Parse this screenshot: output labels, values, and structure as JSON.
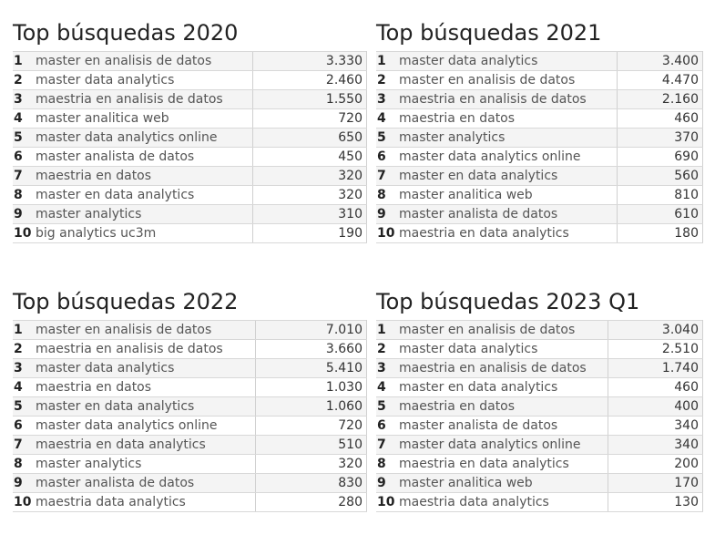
{
  "chart_data": [
    {
      "type": "table",
      "title": "Top búsquedas 2020",
      "rows": [
        {
          "rank": "1",
          "term": "master en analisis de datos",
          "value": "3.330"
        },
        {
          "rank": "2",
          "term": "master data analytics",
          "value": "2.460"
        },
        {
          "rank": "3",
          "term": "maestria en analisis de datos",
          "value": "1.550"
        },
        {
          "rank": "4",
          "term": "master analitica web",
          "value": "720"
        },
        {
          "rank": "5",
          "term": "master data analytics online",
          "value": "650"
        },
        {
          "rank": "6",
          "term": "master analista de datos",
          "value": "450"
        },
        {
          "rank": "7",
          "term": "maestria en datos",
          "value": "320"
        },
        {
          "rank": "8",
          "term": "master en data analytics",
          "value": "320"
        },
        {
          "rank": "9",
          "term": "master analytics",
          "value": "310"
        },
        {
          "rank": "10",
          "term": "big analytics uc3m",
          "value": "190"
        }
      ]
    },
    {
      "type": "table",
      "title": "Top búsquedas 2021",
      "rows": [
        {
          "rank": "1",
          "term": "master data analytics",
          "value": "3.400"
        },
        {
          "rank": "2",
          "term": "master en analisis de datos",
          "value": "4.470"
        },
        {
          "rank": "3",
          "term": "maestria en analisis de datos",
          "value": "2.160"
        },
        {
          "rank": "4",
          "term": "maestria en datos",
          "value": "460"
        },
        {
          "rank": "5",
          "term": "master analytics",
          "value": "370"
        },
        {
          "rank": "6",
          "term": "master data analytics online",
          "value": "690"
        },
        {
          "rank": "7",
          "term": "master en data analytics",
          "value": "560"
        },
        {
          "rank": "8",
          "term": "master analitica web",
          "value": "810"
        },
        {
          "rank": "9",
          "term": "master analista de datos",
          "value": "610"
        },
        {
          "rank": "10",
          "term": "maestria en data analytics",
          "value": "180"
        }
      ]
    },
    {
      "type": "table",
      "title": "Top búsquedas 2022",
      "rows": [
        {
          "rank": "1",
          "term": "master en analisis de datos",
          "value": "7.010"
        },
        {
          "rank": "2",
          "term": "maestria en analisis de datos",
          "value": "3.660"
        },
        {
          "rank": "3",
          "term": "master data analytics",
          "value": "5.410"
        },
        {
          "rank": "4",
          "term": "maestria en datos",
          "value": "1.030"
        },
        {
          "rank": "5",
          "term": "master en data analytics",
          "value": "1.060"
        },
        {
          "rank": "6",
          "term": "master data analytics online",
          "value": "720"
        },
        {
          "rank": "7",
          "term": "maestria en data analytics",
          "value": "510"
        },
        {
          "rank": "8",
          "term": "master analytics",
          "value": "320"
        },
        {
          "rank": "9",
          "term": "master analista de datos",
          "value": "830"
        },
        {
          "rank": "10",
          "term": "maestria data analytics",
          "value": "280"
        }
      ]
    },
    {
      "type": "table",
      "title": "Top búsquedas 2023 Q1",
      "rows": [
        {
          "rank": "1",
          "term": "master en analisis de datos",
          "value": "3.040"
        },
        {
          "rank": "2",
          "term": "master data analytics",
          "value": "2.510"
        },
        {
          "rank": "3",
          "term": "maestria en analisis de datos",
          "value": "1.740"
        },
        {
          "rank": "4",
          "term": "master en data analytics",
          "value": "460"
        },
        {
          "rank": "5",
          "term": "maestria en datos",
          "value": "400"
        },
        {
          "rank": "6",
          "term": "master analista de datos",
          "value": "340"
        },
        {
          "rank": "7",
          "term": "master data analytics online",
          "value": "340"
        },
        {
          "rank": "8",
          "term": "maestria en data analytics",
          "value": "200"
        },
        {
          "rank": "9",
          "term": "master analitica web",
          "value": "170"
        },
        {
          "rank": "10",
          "term": "maestria data analytics",
          "value": "130"
        }
      ]
    }
  ]
}
